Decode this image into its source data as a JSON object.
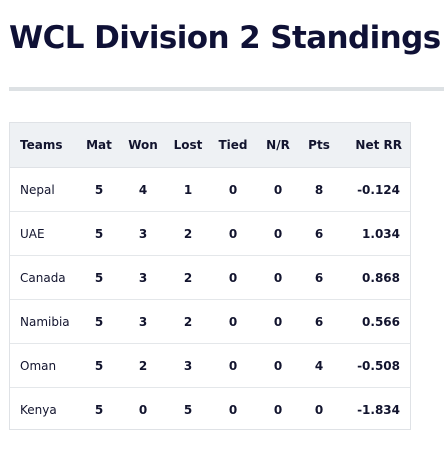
{
  "header": {
    "title": "WCL Division 2 Standings"
  },
  "table": {
    "columns": [
      "Teams",
      "Mat",
      "Won",
      "Lost",
      "Tied",
      "N/R",
      "Pts",
      "Net RR"
    ],
    "rows": [
      [
        "Nepal",
        "5",
        "4",
        "1",
        "0",
        "0",
        "8",
        "-0.124"
      ],
      [
        "UAE",
        "5",
        "3",
        "2",
        "0",
        "0",
        "6",
        "1.034"
      ],
      [
        "Canada",
        "5",
        "3",
        "2",
        "0",
        "0",
        "6",
        "0.868"
      ],
      [
        "Namibia",
        "5",
        "3",
        "2",
        "0",
        "0",
        "6",
        "0.566"
      ],
      [
        "Oman",
        "5",
        "2",
        "3",
        "0",
        "0",
        "4",
        "-0.508"
      ],
      [
        "Kenya",
        "5",
        "0",
        "5",
        "0",
        "0",
        "0",
        "-1.834"
      ]
    ]
  }
}
